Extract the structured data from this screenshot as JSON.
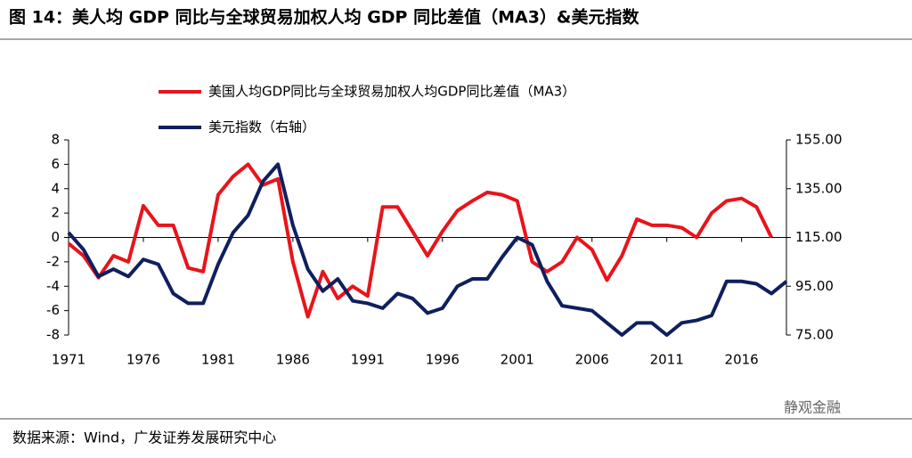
{
  "chart_data": {
    "type": "line",
    "title": "图 14：美人均 GDP 同比与全球贸易加权人均 GDP 同比差值（MA3）&美元指数",
    "source": "数据来源：Wind，广发证券发展研究中心",
    "watermark": "静观金融",
    "x": [
      1971,
      1972,
      1973,
      1974,
      1975,
      1976,
      1977,
      1978,
      1979,
      1980,
      1981,
      1982,
      1983,
      1984,
      1985,
      1986,
      1987,
      1988,
      1989,
      1990,
      1991,
      1992,
      1993,
      1994,
      1995,
      1996,
      1997,
      1998,
      1999,
      2000,
      2001,
      2002,
      2003,
      2004,
      2005,
      2006,
      2007,
      2008,
      2009,
      2010,
      2011,
      2012,
      2013,
      2014,
      2015,
      2016,
      2017,
      2018,
      2019
    ],
    "xlim": [
      1971,
      2019
    ],
    "xticks": [
      1971,
      1976,
      1981,
      1986,
      1991,
      1996,
      2001,
      2006,
      2011,
      2016
    ],
    "ylim": [
      -8,
      8
    ],
    "yticks": [
      -8,
      -6,
      -4,
      -2,
      0,
      2,
      4,
      6,
      8
    ],
    "y2lim": [
      75,
      155
    ],
    "y2ticks": [
      {
        "value": 75,
        "label": "75.00"
      },
      {
        "value": 95,
        "label": "95.00"
      },
      {
        "value": 115,
        "label": "115.00"
      },
      {
        "value": 135,
        "label": "135.00"
      },
      {
        "value": 155,
        "label": "155.00"
      }
    ],
    "series": [
      {
        "name": "美国人均GDP同比与全球贸易加权人均GDP同比差值（MA3）",
        "color": "#e8141b",
        "values": [
          -0.5,
          -1.5,
          -3.3,
          -1.5,
          -2.0,
          2.6,
          1.0,
          1.0,
          -2.5,
          -2.8,
          3.5,
          5.0,
          6.0,
          4.3,
          4.8,
          -2.0,
          -6.5,
          -2.8,
          -5.0,
          -4.0,
          -4.8,
          2.5,
          2.5,
          0.5,
          -1.5,
          0.5,
          2.2,
          3.0,
          3.7,
          3.5,
          3.0,
          -2.0,
          -2.8,
          -2.0,
          0.0,
          -1.0,
          -3.5,
          -1.5,
          1.5,
          1.0,
          1.0,
          0.8,
          0.0,
          2.0,
          3.0,
          3.2,
          2.5,
          0.0,
          null
        ]
      },
      {
        "name": "美元指数（右轴）",
        "color": "#0f1f5e",
        "axis": "y2",
        "values": [
          117,
          110,
          99,
          102,
          99,
          106,
          104,
          92,
          88,
          88,
          104,
          117,
          124,
          138,
          145,
          120,
          102,
          93,
          98,
          89,
          88,
          86,
          92,
          90,
          84,
          86,
          95,
          98,
          98,
          107,
          115,
          112,
          97,
          87,
          86,
          85,
          80,
          75,
          80,
          80,
          75,
          80,
          81,
          83,
          97,
          97,
          96,
          92,
          97
        ]
      }
    ]
  }
}
